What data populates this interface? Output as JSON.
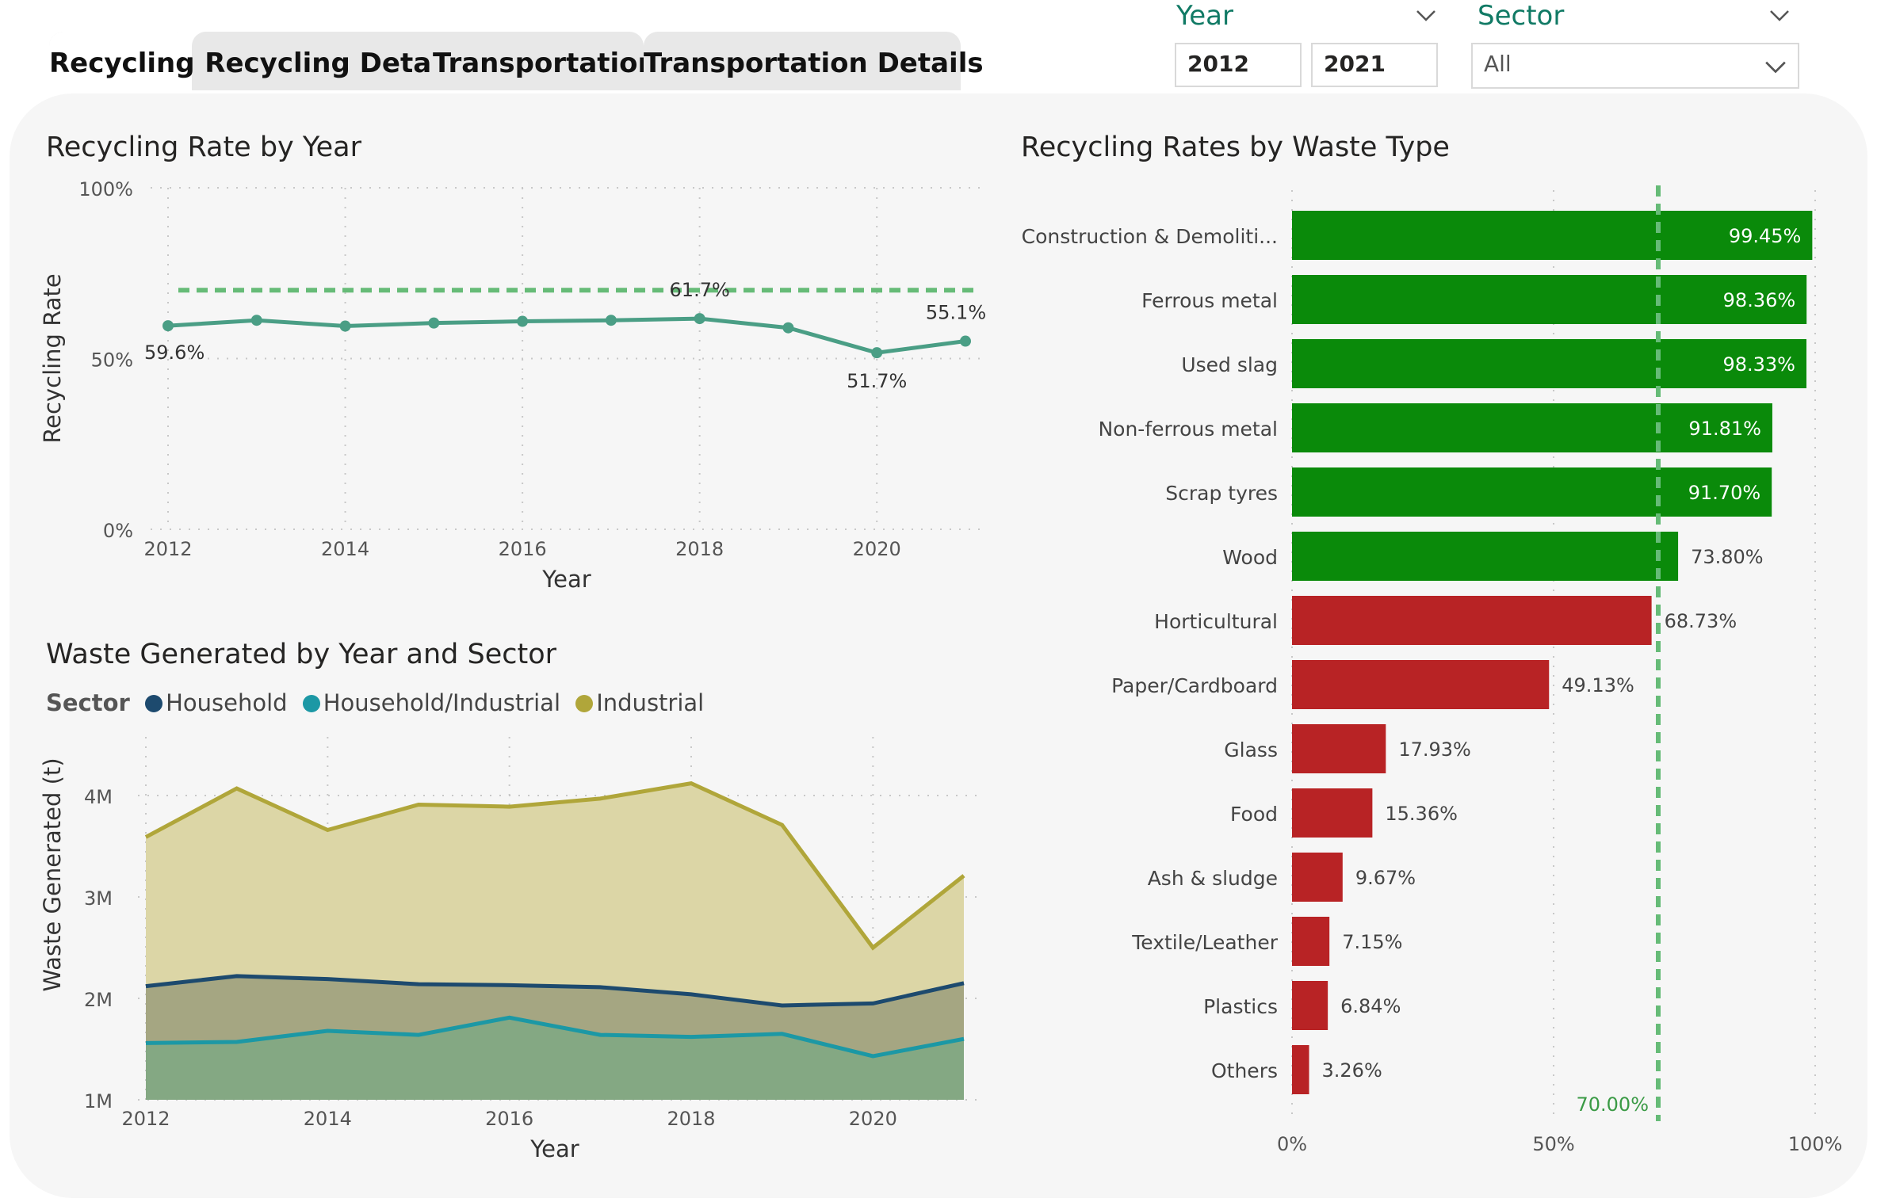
{
  "tabs": [
    {
      "label": "Recycling",
      "active": true
    },
    {
      "label": "Recycling Details",
      "active": false
    },
    {
      "label": "Transportation",
      "active": false
    },
    {
      "label": "Transportation Details",
      "active": false
    }
  ],
  "filters": {
    "year": {
      "title": "Year",
      "from": "2012",
      "to": "2021"
    },
    "sector": {
      "title": "Sector",
      "value": "All"
    }
  },
  "colors": {
    "line": "#4a9e85",
    "target": "#66bb77",
    "bar_above": "#0a8a0a",
    "bar_below": "#b82325",
    "household": "#1d4a6e",
    "household_industrial": "#1c98a5",
    "industrial": "#b0a63a"
  },
  "chart_data": [
    {
      "id": "recycling-rate-by-year",
      "type": "line",
      "title": "Recycling Rate by Year",
      "xlabel": "Year",
      "ylabel": "Recycling Rate",
      "x": [
        2012,
        2013,
        2014,
        2015,
        2016,
        2017,
        2018,
        2019,
        2020,
        2021
      ],
      "values": [
        59.6,
        61.2,
        59.5,
        60.4,
        60.9,
        61.2,
        61.7,
        59.0,
        51.7,
        55.1
      ],
      "data_labels": [
        {
          "x": 2012,
          "text": "59.6%"
        },
        {
          "x": 2018,
          "text": "61.7%"
        },
        {
          "x": 2020,
          "text": "51.7%"
        },
        {
          "x": 2021,
          "text": "55.1%"
        }
      ],
      "target": 70,
      "ylim": [
        0,
        100
      ],
      "yticks": [
        "0%",
        "50%",
        "100%"
      ],
      "xticks": [
        "2012",
        "2014",
        "2016",
        "2018",
        "2020"
      ]
    },
    {
      "id": "waste-generated-by-year-and-sector",
      "type": "area",
      "title": "Waste Generated by Year and Sector",
      "xlabel": "Year",
      "ylabel": "Waste Generated (t)",
      "legend_title": "Sector",
      "x": [
        2012,
        2013,
        2014,
        2015,
        2016,
        2017,
        2018,
        2019,
        2020,
        2021
      ],
      "series": [
        {
          "name": "Industrial",
          "values": [
            3.59,
            4.07,
            3.66,
            3.91,
            3.89,
            3.97,
            4.12,
            3.71,
            2.5,
            3.21
          ]
        },
        {
          "name": "Household",
          "values": [
            2.12,
            2.22,
            2.19,
            2.14,
            2.13,
            2.11,
            2.04,
            1.93,
            1.95,
            2.15
          ]
        },
        {
          "name": "Household/Industrial",
          "values": [
            1.56,
            1.57,
            1.68,
            1.64,
            1.81,
            1.64,
            1.62,
            1.65,
            1.43,
            1.6
          ]
        }
      ],
      "units": "M",
      "ylim": [
        1,
        4.5
      ],
      "yticks": [
        "1M",
        "2M",
        "3M",
        "4M"
      ],
      "xticks": [
        "2012",
        "2014",
        "2016",
        "2018",
        "2020"
      ]
    },
    {
      "id": "recycling-rates-by-waste-type",
      "type": "bar",
      "title": "Recycling Rates by Waste Type",
      "categories": [
        "Construction & Demoliti...",
        "Ferrous metal",
        "Used slag",
        "Non-ferrous metal",
        "Scrap tyres",
        "Wood",
        "Horticultural",
        "Paper/Cardboard",
        "Glass",
        "Food",
        "Ash & sludge",
        "Textile/Leather",
        "Plastics",
        "Others"
      ],
      "values": [
        99.45,
        98.36,
        98.33,
        91.81,
        91.7,
        73.8,
        68.73,
        49.13,
        17.93,
        15.36,
        9.67,
        7.15,
        6.84,
        3.26
      ],
      "labels": [
        "99.45%",
        "98.36%",
        "98.33%",
        "91.81%",
        "91.70%",
        "73.80%",
        "68.73%",
        "49.13%",
        "17.93%",
        "15.36%",
        "9.67%",
        "7.15%",
        "6.84%",
        "3.26%"
      ],
      "target": 70,
      "target_label": "70.00%",
      "xlim": [
        0,
        100
      ],
      "xticks": [
        "0%",
        "50%",
        "100%"
      ]
    }
  ]
}
